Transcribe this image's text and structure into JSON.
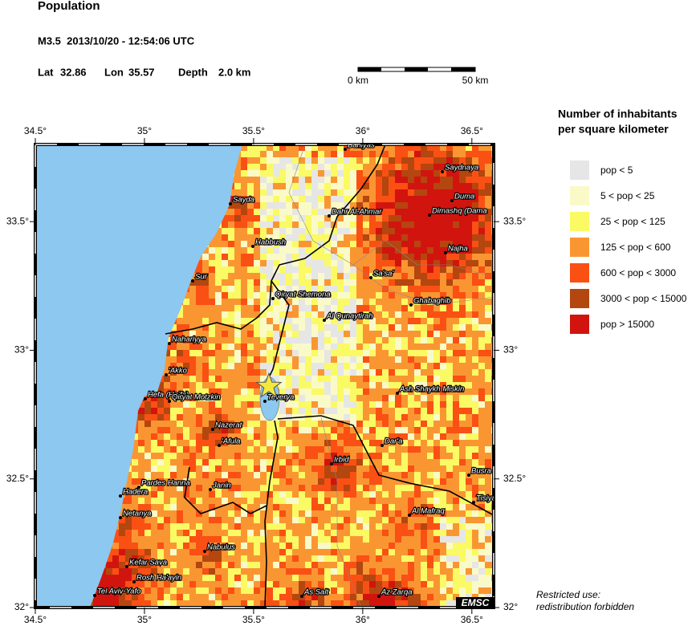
{
  "header": {
    "title": "Population",
    "event": "M3.5  2013/10/20 - 12:54:06 UTC",
    "lat_label": "Lat",
    "lat": 32.86,
    "lon_label": "Lon",
    "lon": 35.57,
    "depth_label": "Depth",
    "depth": "2.0 km"
  },
  "scale_bar": {
    "start": "0 km",
    "end": "50 km"
  },
  "map": {
    "lon_range": [
      34.5,
      36.6
    ],
    "lat_range": [
      32,
      33.8
    ],
    "lon_ticks": [
      {
        "value": 34.5,
        "label": "34.5°"
      },
      {
        "value": 35,
        "label": "35°"
      },
      {
        "value": 35.5,
        "label": "35.5°"
      },
      {
        "value": 36,
        "label": "36°"
      },
      {
        "value": 36.5,
        "label": "36.5°"
      }
    ],
    "lat_ticks": [
      {
        "value": 32,
        "label": "32°"
      },
      {
        "value": 32.5,
        "label": "32.5°"
      },
      {
        "value": 33,
        "label": "33°"
      },
      {
        "value": 33.5,
        "label": "33.5°"
      }
    ],
    "cities": [
      "Bāniyās",
      "Saydnaya",
      "Duma",
      "Dimashq (Dama",
      "Sayda",
      "Dahr Al-Ahmar",
      "Habbush",
      "Najha",
      "Sur",
      "Sa'sa'",
      "Qiryat Shemona",
      "Ghabaghib",
      "Al Qunaytirah",
      "Nahariyya",
      "'Akko",
      "Hefa (Haifa)",
      "Qiryat Motzkin",
      "Teverya",
      "Ash Shaykh Miskin",
      "Nazerat",
      "'Afula",
      "Dar'a",
      "Irbid",
      "Busra",
      "Pardes Hanna",
      "Janin",
      "Hadera",
      "Tisiyah",
      "Al Mafraq",
      "Netanya",
      "Nabulus",
      "Kefar Sava",
      "Rosh Ha'ayin",
      "Tel Aviv-Yafo",
      "As Salt",
      "Az Zarqa"
    ],
    "logo": "EMSC"
  },
  "legend": {
    "title_lines": [
      "Number of inhabitants",
      "per square kilometer"
    ],
    "items": [
      {
        "label": "pop < 5",
        "color": "#e6e6e6"
      },
      {
        "label": "5 < pop < 25",
        "color": "#fafac8"
      },
      {
        "label": "25 < pop < 125",
        "color": "#fafa64"
      },
      {
        "label": "125 < pop < 600",
        "color": "#fa9632"
      },
      {
        "label": "600 < pop < 3000",
        "color": "#fa5014"
      },
      {
        "label": "3000 < pop < 15000",
        "color": "#b4460f"
      },
      {
        "label": "pop > 15000",
        "color": "#d2140f"
      }
    ]
  },
  "footer": {
    "lines": [
      "Restricted use:",
      "redistribution forbidden"
    ]
  }
}
